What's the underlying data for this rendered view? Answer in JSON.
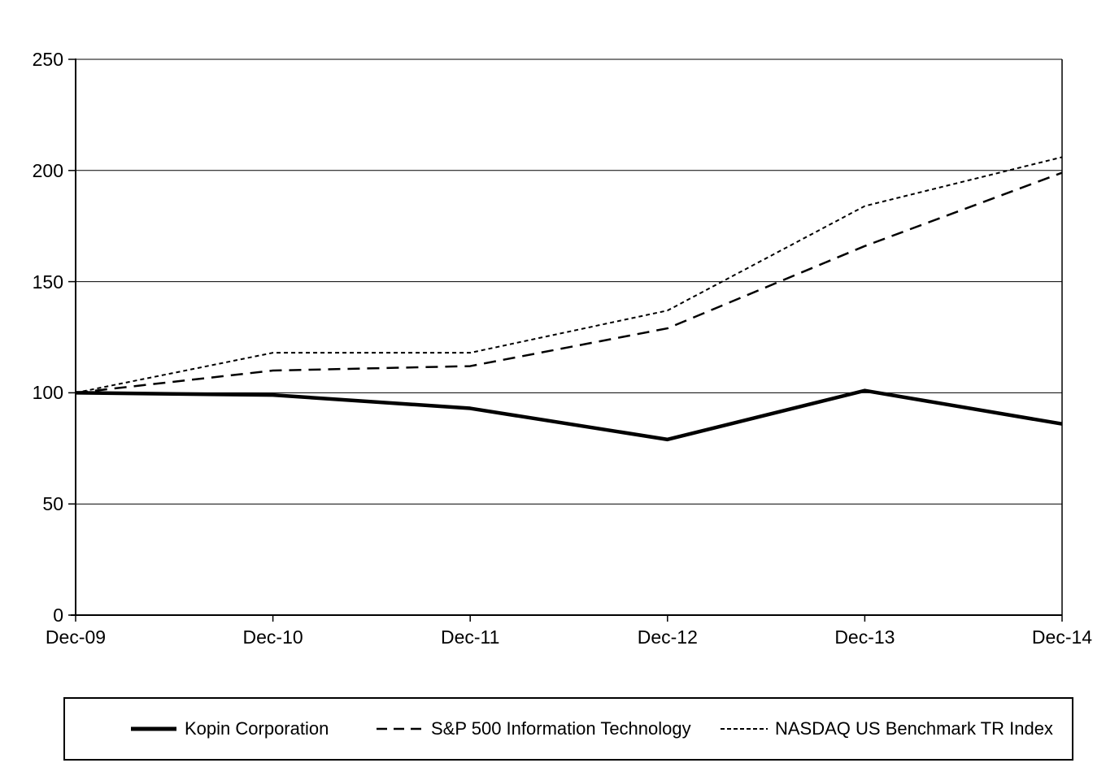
{
  "chart_data": {
    "type": "line",
    "title": "",
    "x_categories": [
      "Dec-09",
      "Dec-10",
      "Dec-11",
      "Dec-12",
      "Dec-13",
      "Dec-14"
    ],
    "y_ticks": [
      0,
      50,
      100,
      150,
      200,
      250
    ],
    "ylim": [
      0,
      250
    ],
    "grid": "horizontal-only",
    "legend_position": "bottom",
    "line_color": "#000000",
    "background_color": "#ffffff",
    "series": [
      {
        "name": "Kopin Corporation",
        "style": "solid",
        "values": [
          100,
          99,
          93,
          79,
          101,
          86
        ]
      },
      {
        "name": "S&P 500 Information Technology",
        "style": "long-dash",
        "values": [
          100,
          110,
          112,
          129,
          166,
          199
        ]
      },
      {
        "name": "NASDAQ US Benchmark TR Index",
        "style": "short-dash",
        "values": [
          100,
          118,
          118,
          137,
          184,
          206
        ]
      }
    ]
  }
}
